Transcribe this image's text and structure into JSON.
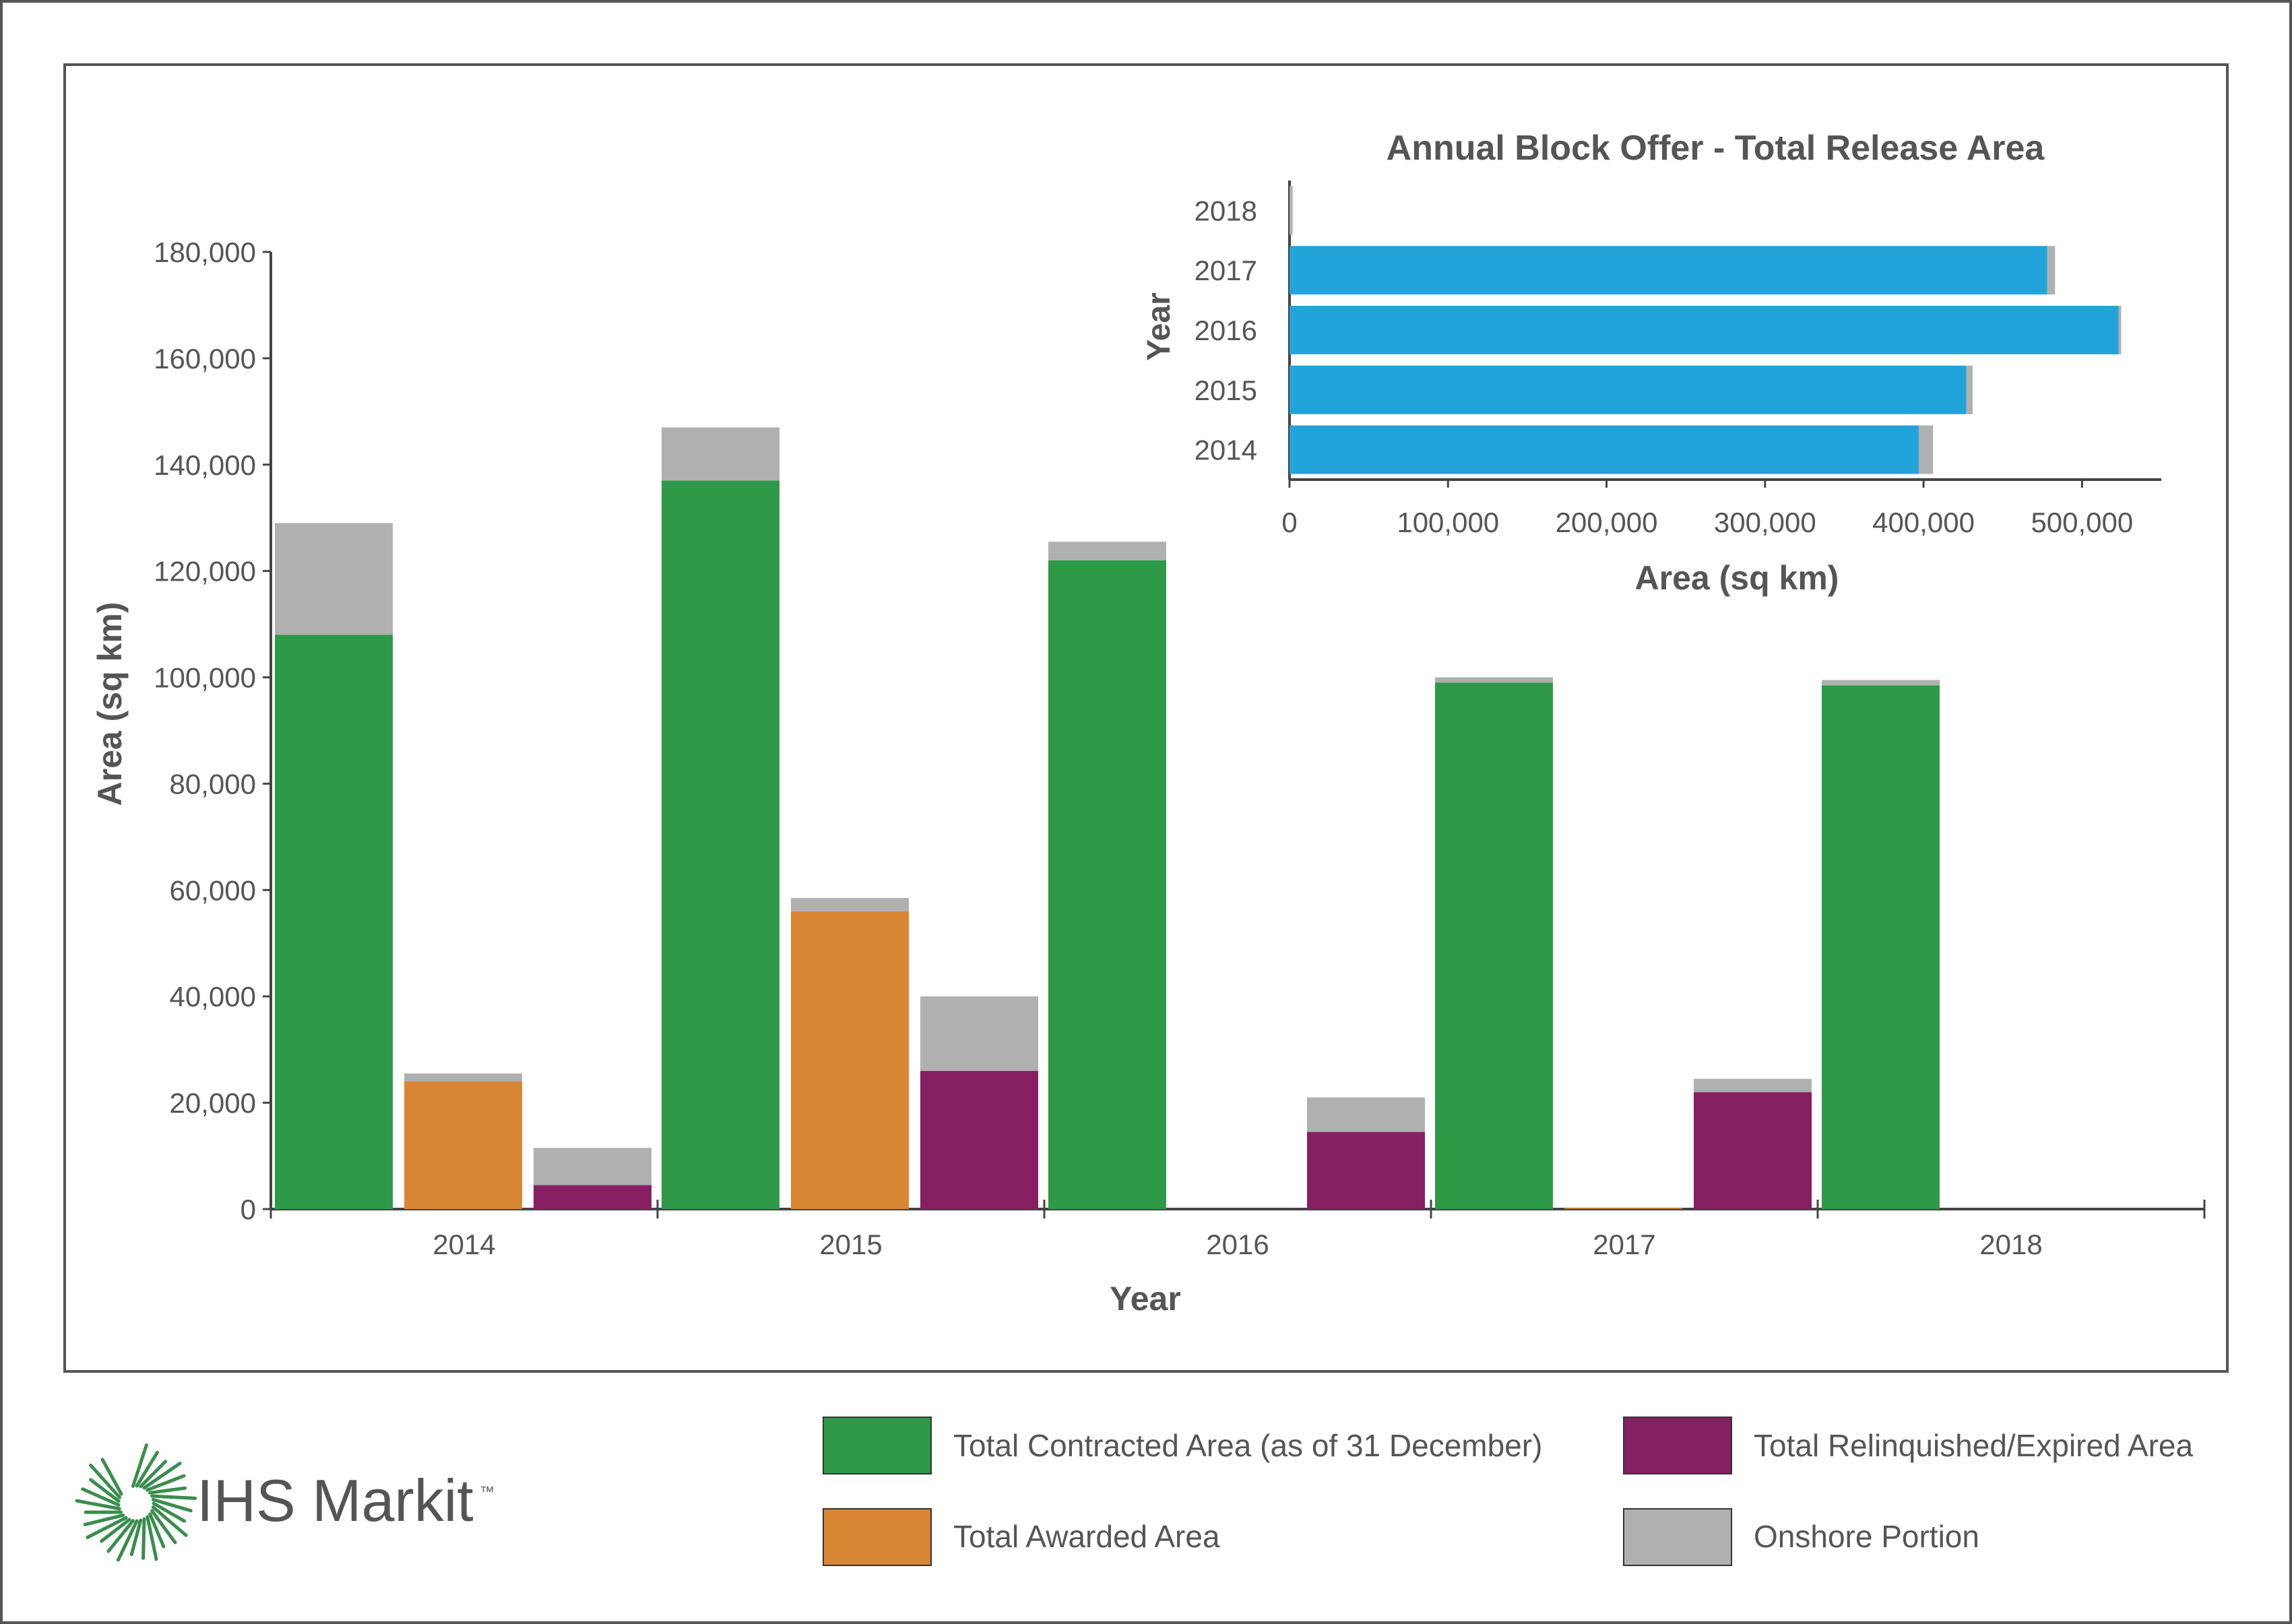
{
  "branding": {
    "logo_text": "IHS Markit",
    "trademark": "™"
  },
  "colors": {
    "contracted": "#2e9a48",
    "awarded": "#d98634",
    "relinquished": "#871f63",
    "onshore": "#b0b0b0",
    "release": "#22a3da",
    "axis": "#444444",
    "text": "#555555"
  },
  "legend": {
    "contracted": "Total Contracted Area (as of 31 December)",
    "relinquished": "Total Relinquished/Expired Area",
    "awarded": "Total Awarded Area",
    "onshore": "Onshore Portion"
  },
  "chart_data": [
    {
      "type": "bar",
      "title": "",
      "xlabel": "Year",
      "ylabel": "Area (sq km)",
      "ylim": [
        0,
        180000
      ],
      "yticks": [
        0,
        20000,
        40000,
        60000,
        80000,
        100000,
        120000,
        140000,
        160000,
        180000
      ],
      "ytick_labels": [
        "0",
        "20,000",
        "40,000",
        "60,000",
        "80,000",
        "100,000",
        "120,000",
        "140,000",
        "160,000",
        "180,000"
      ],
      "categories": [
        "2014",
        "2015",
        "2016",
        "2017",
        "2018"
      ],
      "grid": false,
      "stacked": true,
      "series": [
        {
          "name": "Total Contracted Area (as of 31 December)",
          "offshore": [
            108000,
            137000,
            122000,
            99000,
            98500
          ],
          "onshore": [
            21000,
            10000,
            3500,
            1000,
            1000
          ]
        },
        {
          "name": "Total Awarded Area",
          "offshore": [
            24000,
            56000,
            0,
            200,
            0
          ],
          "onshore": [
            1500,
            2500,
            0,
            0,
            0
          ]
        },
        {
          "name": "Total Relinquished/Expired Area",
          "offshore": [
            4500,
            26000,
            14500,
            22000,
            0
          ],
          "onshore": [
            7000,
            14000,
            6500,
            2500,
            0
          ]
        }
      ]
    },
    {
      "type": "bar",
      "orientation": "horizontal",
      "title": "Annual Block Offer - Total Release Area",
      "xlabel": "Area (sq km)",
      "ylabel": "Year",
      "xlim": [
        0,
        550000
      ],
      "xticks": [
        0,
        100000,
        200000,
        300000,
        400000,
        500000
      ],
      "xtick_labels": [
        "0",
        "100,000",
        "200,000",
        "300,000",
        "400,000",
        "500,000"
      ],
      "categories": [
        "2014",
        "2015",
        "2016",
        "2017",
        "2018"
      ],
      "grid": false,
      "stacked": true,
      "series": [
        {
          "name": "Offshore",
          "values": [
            397000,
            427000,
            523000,
            478000,
            0
          ]
        },
        {
          "name": "Onshore",
          "values": [
            9000,
            4000,
            1000,
            5000,
            2000
          ]
        }
      ]
    }
  ]
}
